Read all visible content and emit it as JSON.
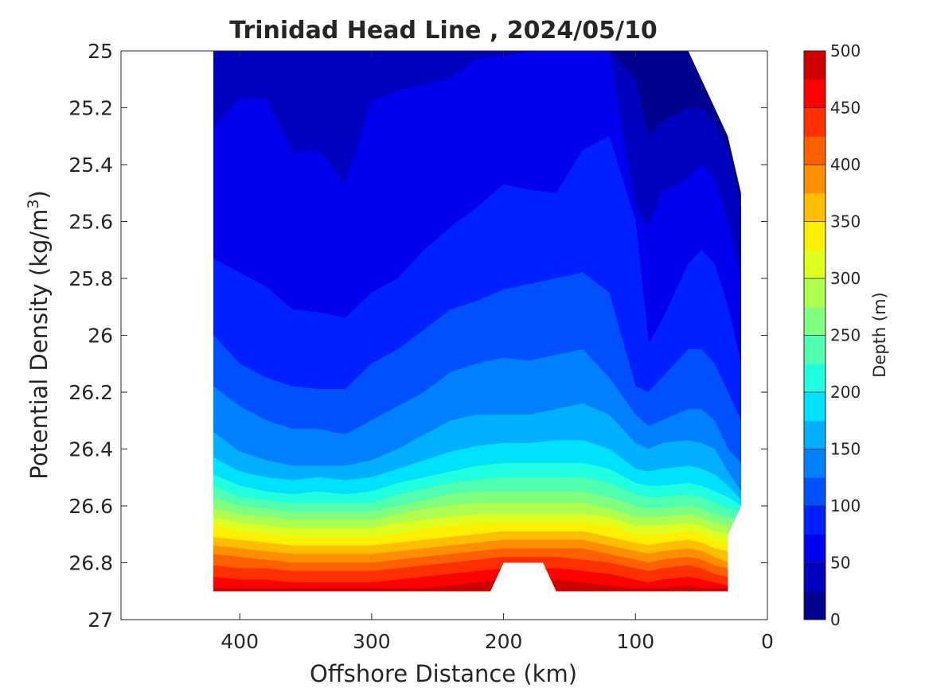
{
  "chart_data": {
    "type": "contourf",
    "title": "Trinidad Head Line , 2024/05/10",
    "xlabel": "Offshore Distance (km)",
    "ylabel_prefix": "Potential Density (kg/m",
    "ylabel_sup": "3",
    "ylabel_suffix": ")",
    "colorbar_label": "Depth (m)",
    "xlim": [
      490,
      0
    ],
    "x_reversed": true,
    "ylim": [
      25,
      27
    ],
    "y_reversed": true,
    "x_ticks": [
      400,
      300,
      200,
      100,
      0
    ],
    "y_ticks": [
      25,
      25.2,
      25.4,
      25.6,
      25.8,
      26,
      26.2,
      26.4,
      26.6,
      26.8,
      27
    ],
    "y_tick_labels": [
      "25",
      "25.2",
      "25.4",
      "25.6",
      "25.8",
      "26",
      "26.2",
      "26.4",
      "26.6",
      "26.8",
      "27"
    ],
    "colorbar_range": [
      0,
      500
    ],
    "colorbar_ticks": [
      0,
      50,
      100,
      150,
      200,
      250,
      300,
      350,
      400,
      450,
      500
    ],
    "level_step": 25,
    "grid": false,
    "colormap": "jet",
    "colors": [
      "#00008F",
      "#0000BF",
      "#0000EF",
      "#0020FF",
      "#0050FF",
      "#0080FF",
      "#00B0FF",
      "#00E0FF",
      "#20FFDF",
      "#50FFAF",
      "#80FF80",
      "#AFFF50",
      "#DFFF20",
      "#FFEF00",
      "#FFBF00",
      "#FF8F00",
      "#FF6000",
      "#FF3000",
      "#FF0000",
      "#CF0000"
    ],
    "contours": [
      {
        "level": 0,
        "x": [
          420,
          400,
          380,
          360,
          340,
          320,
          300,
          280,
          260,
          240,
          220,
          200,
          180,
          160,
          140,
          120,
          100,
          90,
          80,
          60,
          50,
          40,
          30,
          20
        ],
        "y": [
          25.0,
          25.0,
          25.0,
          25.0,
          25.0,
          25.0,
          25.0,
          25.0,
          25.0,
          25.0,
          25.0,
          25.0,
          25.0,
          25.0,
          25.0,
          25.0,
          25.0,
          25.0,
          25.0,
          25.0,
          25.0,
          25.0,
          25.0,
          25.5
        ]
      },
      {
        "level": 25,
        "x": [
          420,
          400,
          380,
          360,
          340,
          320,
          300,
          280,
          260,
          240,
          220,
          200,
          180,
          160,
          140,
          120,
          100,
          90,
          80,
          60,
          50,
          40,
          30,
          20
        ],
        "y": [
          25.0,
          25.0,
          25.0,
          25.0,
          25.0,
          25.0,
          25.0,
          25.0,
          25.0,
          25.0,
          25.0,
          25.0,
          25.0,
          25.0,
          25.0,
          25.0,
          25.1,
          25.3,
          25.25,
          25.2,
          25.2,
          25.25,
          25.35,
          25.55
        ]
      },
      {
        "level": 50,
        "x": [
          420,
          400,
          380,
          360,
          340,
          320,
          300,
          280,
          260,
          240,
          220,
          200,
          180,
          160,
          140,
          120,
          100,
          90,
          80,
          60,
          50,
          40,
          30,
          20
        ],
        "y": [
          25.27,
          25.17,
          25.17,
          25.36,
          25.35,
          25.47,
          25.18,
          25.14,
          25.12,
          25.1,
          25.03,
          25.02,
          25.0,
          25.0,
          25.0,
          25.0,
          25.55,
          25.62,
          25.5,
          25.45,
          25.4,
          25.45,
          25.6,
          25.8
        ]
      },
      {
        "level": 75,
        "x": [
          420,
          400,
          380,
          360,
          340,
          320,
          300,
          280,
          260,
          240,
          220,
          200,
          180,
          160,
          140,
          120,
          100,
          90,
          80,
          60,
          50,
          40,
          30,
          20
        ],
        "y": [
          25.73,
          25.78,
          25.83,
          25.91,
          25.92,
          25.94,
          25.85,
          25.8,
          25.7,
          25.62,
          25.55,
          25.47,
          25.49,
          25.5,
          25.35,
          25.3,
          25.6,
          26.03,
          25.95,
          25.75,
          25.7,
          25.75,
          25.9,
          26.1
        ]
      },
      {
        "level": 100,
        "x": [
          420,
          400,
          380,
          360,
          340,
          320,
          300,
          280,
          260,
          240,
          220,
          200,
          180,
          160,
          140,
          120,
          100,
          90,
          80,
          60,
          50,
          40,
          30,
          20
        ],
        "y": [
          26.0,
          26.1,
          26.15,
          26.18,
          26.19,
          26.19,
          26.1,
          26.05,
          25.98,
          25.91,
          25.88,
          25.84,
          25.82,
          25.8,
          25.78,
          25.85,
          26.18,
          26.2,
          26.15,
          26.05,
          26.05,
          26.1,
          26.2,
          26.3
        ]
      },
      {
        "level": 125,
        "x": [
          420,
          400,
          380,
          360,
          340,
          320,
          300,
          280,
          260,
          240,
          220,
          200,
          180,
          160,
          140,
          120,
          100,
          90,
          80,
          60,
          50,
          40,
          30,
          20
        ],
        "y": [
          26.18,
          26.25,
          26.3,
          26.33,
          26.33,
          26.35,
          26.3,
          26.25,
          26.2,
          26.13,
          26.1,
          26.08,
          26.09,
          26.07,
          26.05,
          26.15,
          26.28,
          26.32,
          26.3,
          26.26,
          26.26,
          26.3,
          26.4,
          26.45
        ]
      },
      {
        "level": 150,
        "x": [
          420,
          400,
          380,
          360,
          340,
          320,
          300,
          280,
          260,
          240,
          220,
          200,
          180,
          160,
          140,
          120,
          100,
          90,
          80,
          60,
          50,
          40,
          30,
          20
        ],
        "y": [
          26.34,
          26.41,
          26.44,
          26.46,
          26.46,
          26.46,
          26.44,
          26.4,
          26.35,
          26.3,
          26.28,
          26.28,
          26.28,
          26.26,
          26.24,
          26.28,
          26.38,
          26.4,
          26.38,
          26.37,
          26.38,
          26.4,
          26.48,
          26.55
        ]
      },
      {
        "level": 175,
        "x": [
          420,
          400,
          380,
          360,
          340,
          320,
          300,
          280,
          260,
          240,
          220,
          200,
          180,
          160,
          140,
          120,
          100,
          90,
          80,
          60,
          50,
          40,
          30,
          20
        ],
        "y": [
          26.43,
          26.48,
          26.5,
          26.51,
          26.5,
          26.51,
          26.5,
          26.47,
          26.44,
          26.41,
          26.39,
          26.38,
          26.38,
          26.37,
          26.37,
          26.4,
          26.47,
          26.48,
          26.47,
          26.46,
          26.47,
          26.49,
          26.53,
          26.58
        ]
      },
      {
        "level": 200,
        "x": [
          420,
          400,
          380,
          360,
          340,
          320,
          300,
          280,
          260,
          240,
          220,
          200,
          180,
          160,
          140,
          120,
          100,
          90,
          80,
          60,
          50,
          40,
          30,
          20
        ],
        "y": [
          26.49,
          26.53,
          26.55,
          26.56,
          26.55,
          26.56,
          26.55,
          26.52,
          26.5,
          26.48,
          26.46,
          26.45,
          26.45,
          26.45,
          26.45,
          26.47,
          26.52,
          26.53,
          26.53,
          26.52,
          26.53,
          26.55,
          26.57,
          26.6
        ]
      },
      {
        "level": 225,
        "x": [
          420,
          400,
          380,
          360,
          340,
          320,
          300,
          280,
          260,
          240,
          220,
          200,
          180,
          160,
          140,
          120,
          100,
          90,
          80,
          60,
          50,
          40,
          30,
          20
        ],
        "y": [
          26.53,
          26.57,
          26.58,
          26.59,
          26.59,
          26.59,
          26.59,
          26.56,
          26.54,
          26.52,
          26.51,
          26.5,
          26.5,
          26.5,
          26.5,
          26.52,
          26.56,
          26.57,
          26.57,
          26.56,
          26.57,
          26.59,
          26.61,
          26.62
        ]
      },
      {
        "level": 250,
        "x": [
          420,
          400,
          380,
          360,
          340,
          320,
          300,
          280,
          260,
          240,
          220,
          200,
          180,
          160,
          140,
          120,
          100,
          90,
          80,
          60,
          50,
          40,
          30,
          20
        ],
        "y": [
          26.57,
          26.6,
          26.61,
          26.62,
          26.62,
          26.62,
          26.62,
          26.6,
          26.58,
          26.56,
          26.55,
          26.55,
          26.55,
          26.55,
          26.55,
          26.57,
          26.6,
          26.61,
          26.61,
          26.6,
          26.61,
          26.63,
          26.64,
          26.65
        ]
      },
      {
        "level": 275,
        "x": [
          420,
          400,
          380,
          360,
          340,
          320,
          300,
          280,
          260,
          240,
          220,
          200,
          180,
          160,
          140,
          120,
          100,
          90,
          80,
          60,
          50,
          40,
          30,
          20
        ],
        "y": [
          26.61,
          26.63,
          26.64,
          26.65,
          26.65,
          26.65,
          26.65,
          26.63,
          26.61,
          26.6,
          26.59,
          26.59,
          26.59,
          26.59,
          26.59,
          26.61,
          26.64,
          26.64,
          26.64,
          26.63,
          26.64,
          26.66,
          26.67,
          26.68
        ]
      },
      {
        "level": 300,
        "x": [
          420,
          400,
          380,
          360,
          340,
          320,
          300,
          280,
          260,
          240,
          220,
          200,
          180,
          160,
          140,
          120,
          100,
          90,
          80,
          60,
          50,
          40,
          30,
          20
        ],
        "y": [
          26.64,
          26.66,
          26.67,
          26.68,
          26.68,
          26.68,
          26.68,
          26.66,
          26.65,
          26.64,
          26.63,
          26.63,
          26.63,
          26.63,
          26.63,
          26.64,
          26.67,
          26.67,
          26.67,
          26.66,
          26.67,
          26.69,
          26.7,
          26.72
        ]
      },
      {
        "level": 325,
        "x": [
          420,
          400,
          380,
          360,
          340,
          320,
          300,
          280,
          260,
          240,
          220,
          200,
          180,
          160,
          140,
          120,
          100,
          90,
          80,
          60,
          50,
          40,
          30,
          20
        ],
        "y": [
          26.67,
          26.69,
          26.7,
          26.71,
          26.71,
          26.71,
          26.71,
          26.7,
          26.68,
          26.67,
          26.66,
          26.66,
          26.66,
          26.66,
          26.66,
          26.67,
          26.7,
          26.7,
          26.7,
          26.69,
          26.7,
          26.72,
          26.73,
          26.75
        ]
      },
      {
        "level": 350,
        "x": [
          420,
          400,
          380,
          360,
          340,
          320,
          300,
          280,
          260,
          240,
          220,
          200,
          180,
          160,
          140,
          120,
          100,
          90,
          80,
          60,
          50,
          40,
          30,
          20
        ],
        "y": [
          26.71,
          26.72,
          26.73,
          26.74,
          26.74,
          26.74,
          26.74,
          26.73,
          26.72,
          26.71,
          26.7,
          26.69,
          26.69,
          26.69,
          26.69,
          26.71,
          26.73,
          26.74,
          26.73,
          26.72,
          26.73,
          26.75,
          26.76,
          26.78
        ]
      },
      {
        "level": 375,
        "x": [
          420,
          400,
          380,
          360,
          340,
          320,
          300,
          280,
          260,
          240,
          220,
          200,
          180,
          160,
          140,
          120,
          100,
          90,
          80,
          60,
          50,
          40,
          30,
          20
        ],
        "y": [
          26.74,
          26.75,
          26.76,
          26.77,
          26.77,
          26.77,
          26.77,
          26.76,
          26.75,
          26.74,
          26.73,
          26.72,
          26.72,
          26.72,
          26.72,
          26.74,
          26.76,
          26.77,
          26.76,
          26.75,
          26.76,
          26.78,
          26.8,
          26.8
        ]
      },
      {
        "level": 400,
        "x": [
          420,
          400,
          380,
          360,
          340,
          320,
          300,
          280,
          260,
          240,
          220,
          200,
          180,
          160,
          140,
          120,
          100,
          90,
          80,
          60,
          50,
          40,
          30,
          20
        ],
        "y": [
          26.77,
          26.78,
          26.79,
          26.8,
          26.8,
          26.8,
          26.8,
          26.79,
          26.78,
          26.77,
          26.76,
          26.75,
          26.75,
          26.75,
          26.75,
          26.77,
          26.79,
          26.8,
          26.79,
          26.78,
          26.79,
          26.81,
          26.82,
          26.82
        ]
      },
      {
        "level": 425,
        "x": [
          420,
          400,
          380,
          360,
          340,
          320,
          300,
          280,
          260,
          240,
          220,
          200,
          180,
          160,
          140,
          120,
          100,
          90,
          80,
          60,
          50,
          40,
          30,
          20
        ],
        "y": [
          26.81,
          26.82,
          26.82,
          26.83,
          26.83,
          26.83,
          26.83,
          26.82,
          26.81,
          26.8,
          26.79,
          26.78,
          26.78,
          26.78,
          26.79,
          26.8,
          26.82,
          26.83,
          26.82,
          26.81,
          26.82,
          26.84,
          26.85,
          26.85
        ]
      },
      {
        "level": 450,
        "x": [
          420,
          400,
          380,
          360,
          340,
          320,
          300,
          280,
          260,
          240,
          220,
          200,
          180,
          160,
          140,
          120,
          100,
          90,
          80,
          60,
          50,
          40,
          30,
          20
        ],
        "y": [
          26.85,
          26.86,
          26.86,
          26.87,
          26.87,
          26.87,
          26.87,
          26.86,
          26.85,
          26.84,
          26.83,
          26.82,
          26.82,
          26.82,
          26.83,
          26.84,
          26.86,
          26.87,
          26.86,
          26.85,
          26.86,
          26.87,
          26.88,
          26.88
        ]
      },
      {
        "level": 475,
        "x": [
          420,
          400,
          380,
          360,
          340,
          320,
          300,
          280,
          260,
          240,
          220,
          200,
          180,
          160,
          140,
          120,
          100,
          90,
          80,
          60,
          50,
          40,
          30,
          20
        ],
        "y": [
          26.89,
          26.89,
          26.89,
          26.89,
          26.89,
          26.89,
          26.89,
          26.89,
          26.89,
          26.88,
          26.87,
          26.86,
          26.86,
          26.86,
          26.87,
          26.88,
          26.89,
          26.89,
          26.89,
          26.88,
          26.89,
          26.89,
          26.89,
          26.89
        ]
      }
    ],
    "data_boundary": {
      "top": {
        "x": [
          420,
          60,
          30,
          20
        ],
        "y": [
          25.0,
          25.0,
          25.3,
          25.5
        ]
      },
      "right": {
        "x": [
          20,
          20,
          30,
          30
        ],
        "y": [
          25.5,
          26.6,
          26.7,
          26.9
        ]
      },
      "bottom": {
        "x": [
          420,
          210,
          200,
          170,
          160,
          30
        ],
        "y": [
          26.9,
          26.9,
          26.8,
          26.8,
          26.9,
          26.9
        ]
      }
    }
  }
}
